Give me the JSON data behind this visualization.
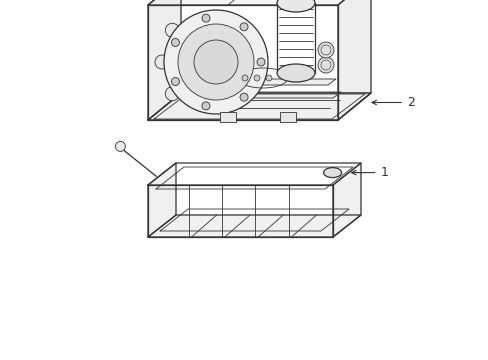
{
  "background_color": "#ffffff",
  "line_color": "#333333",
  "thin_line": 0.6,
  "med_line": 0.9,
  "thick_line": 1.1,
  "label_fontsize": 9,
  "fig_width": 4.89,
  "fig_height": 3.6,
  "dpi": 100
}
